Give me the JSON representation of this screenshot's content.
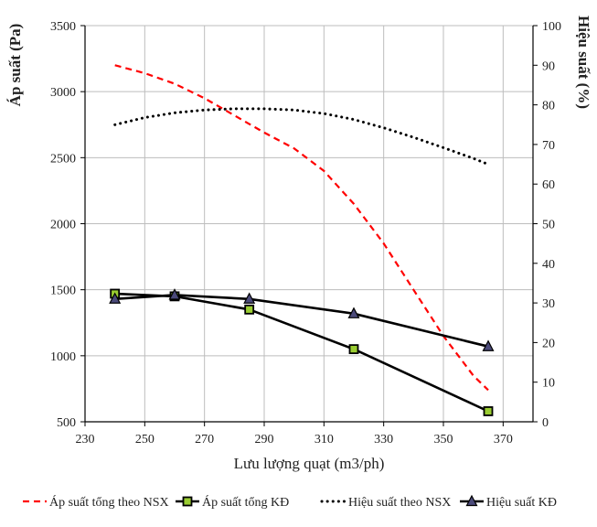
{
  "chart_data": {
    "type": "line",
    "xlabel": "Lưu lượng quạt (m3/ph)",
    "ylabel_left": "Áp suất (Pa)",
    "ylabel_right": "Hiệu suất (%)",
    "xlim": [
      230,
      380
    ],
    "ylim_left": [
      500,
      3500
    ],
    "ylim_right": [
      0,
      100
    ],
    "x_ticks": [
      230,
      250,
      270,
      290,
      310,
      330,
      350,
      370
    ],
    "y_left_ticks": [
      500,
      1000,
      1500,
      2000,
      2500,
      3000,
      3500
    ],
    "y_right_ticks": [
      0,
      10,
      20,
      30,
      40,
      50,
      60,
      70,
      80,
      90,
      100
    ],
    "grid": true,
    "legend_position": "bottom",
    "series": [
      {
        "name": "Áp suất tổng theo NSX",
        "axis": "left",
        "style": "dashed",
        "color": "#ff0000",
        "marker": "none",
        "x": [
          240,
          250,
          260,
          270,
          280,
          290,
          300,
          310,
          320,
          330,
          340,
          350,
          360,
          365
        ],
        "y": [
          3200,
          3140,
          3060,
          2950,
          2820,
          2690,
          2570,
          2400,
          2150,
          1850,
          1500,
          1150,
          850,
          740
        ]
      },
      {
        "name": "Áp suất tổng KĐ",
        "axis": "left",
        "style": "solid",
        "color": "#000000",
        "marker": "square",
        "x": [
          240,
          260,
          285,
          320,
          365
        ],
        "y": [
          1470,
          1450,
          1350,
          1050,
          580
        ]
      },
      {
        "name": "Hiệu suất theo NSX",
        "axis": "right",
        "style": "dotted",
        "color": "#000000",
        "marker": "none",
        "x": [
          240,
          250,
          260,
          270,
          280,
          290,
          300,
          310,
          320,
          330,
          340,
          350,
          360,
          365
        ],
        "y": [
          75,
          76.8,
          78,
          78.7,
          79,
          79,
          78.7,
          77.8,
          76.3,
          74.2,
          71.8,
          69.2,
          66.5,
          65
        ]
      },
      {
        "name": "Hiệu suất KĐ",
        "axis": "right",
        "style": "solid",
        "color": "#000000",
        "marker": "triangle",
        "x": [
          240,
          260,
          285,
          320,
          365
        ],
        "y": [
          31,
          32,
          31,
          27.3,
          19
        ]
      }
    ]
  }
}
